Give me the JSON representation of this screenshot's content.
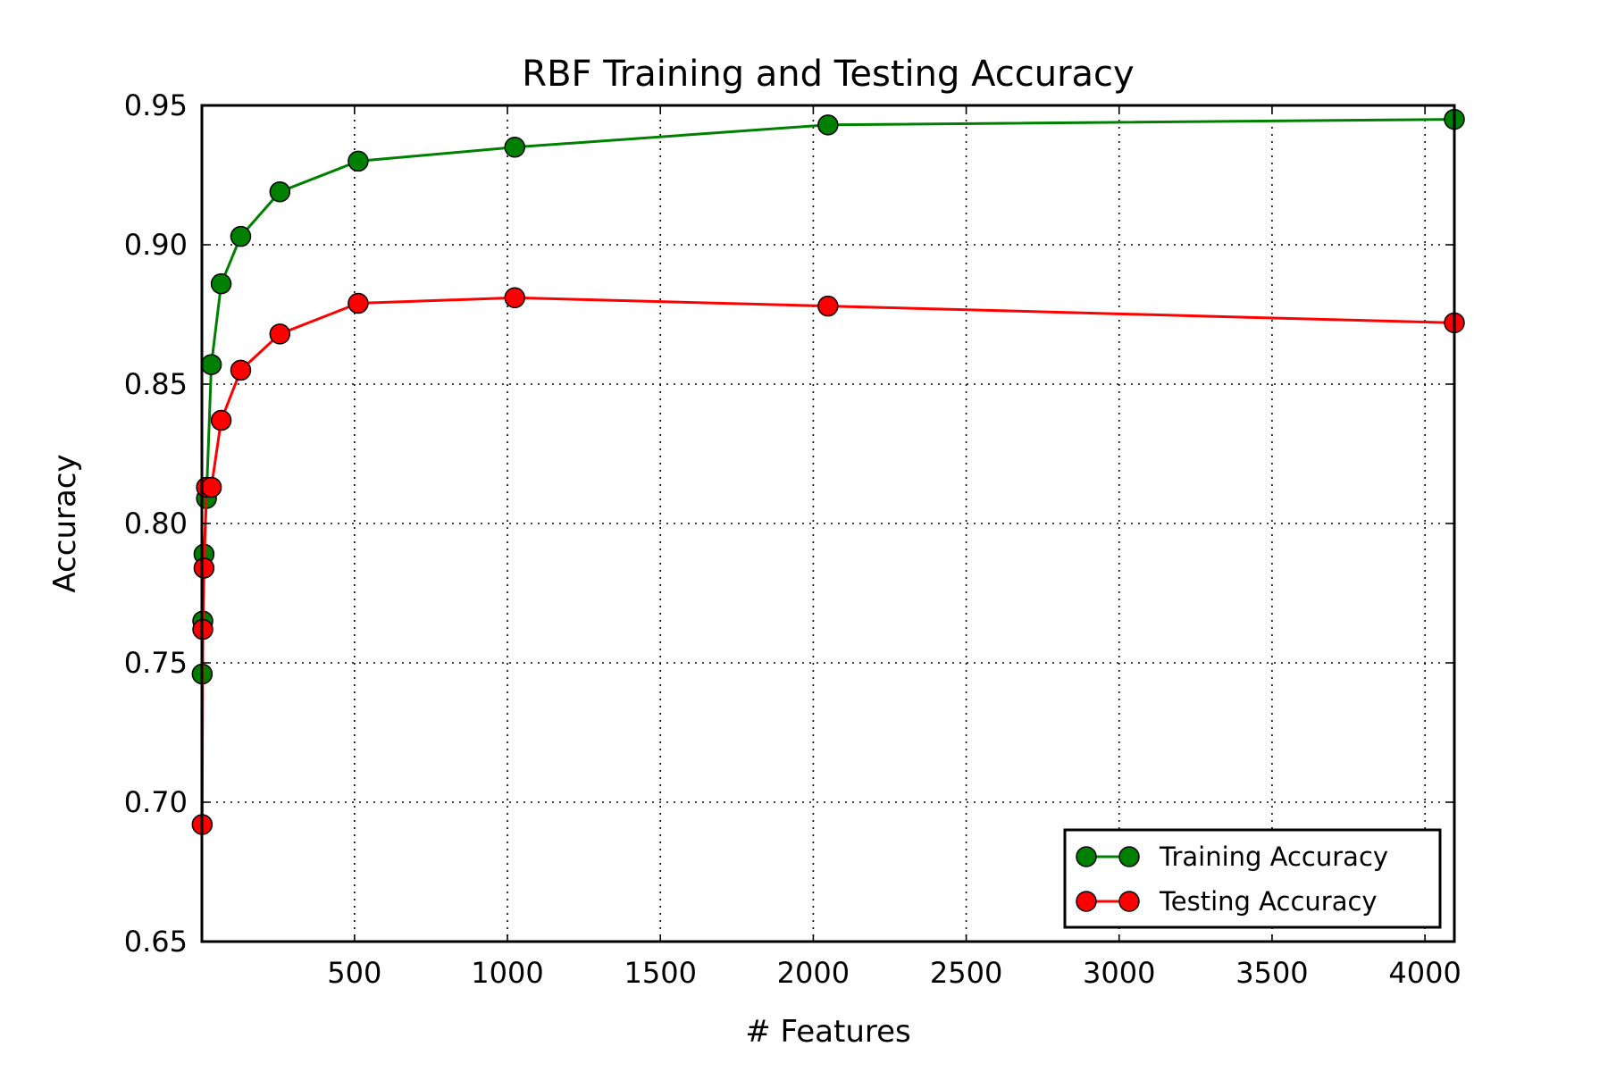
{
  "chart_data": {
    "type": "line",
    "title": "RBF Training and Testing Accuracy",
    "xlabel": "# Features",
    "ylabel": "Accuracy",
    "xlim": [
      1,
      4096
    ],
    "ylim": [
      0.65,
      0.95
    ],
    "xticks": [
      500,
      1000,
      1500,
      2000,
      2500,
      3000,
      3500,
      4000
    ],
    "xtick_labels": [
      "500",
      "1000",
      "1500",
      "2000",
      "2500",
      "3000",
      "3500",
      "4000"
    ],
    "yticks": [
      0.65,
      0.7,
      0.75,
      0.8,
      0.85,
      0.9,
      0.95
    ],
    "ytick_labels": [
      "0.65",
      "0.70",
      "0.75",
      "0.80",
      "0.85",
      "0.90",
      "0.95"
    ],
    "grid": true,
    "legend_position": "bottom-right",
    "x": [
      2,
      4,
      8,
      16,
      32,
      64,
      128,
      256,
      512,
      1024,
      2048,
      4096
    ],
    "series": [
      {
        "name": "Training Accuracy",
        "color": "#008000",
        "values": [
          0.746,
          0.765,
          0.789,
          0.809,
          0.857,
          0.886,
          0.903,
          0.919,
          0.93,
          0.935,
          0.943,
          0.945
        ]
      },
      {
        "name": "Testing Accuracy",
        "color": "#ff0000",
        "values": [
          0.692,
          0.762,
          0.784,
          0.813,
          0.813,
          0.837,
          0.855,
          0.868,
          0.879,
          0.881,
          0.878,
          0.872
        ]
      }
    ]
  }
}
